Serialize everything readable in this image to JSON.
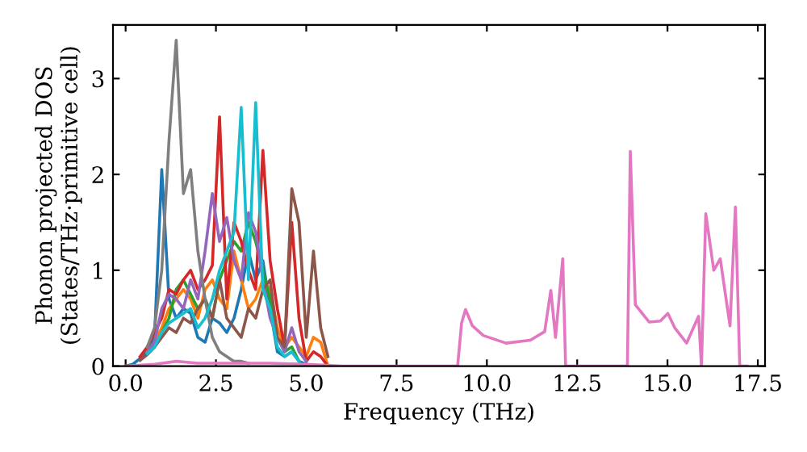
{
  "chart_data": {
    "type": "line",
    "xlabel": "Frequency (THz)",
    "ylabel": "Phonon projected DOS\n(States/THz·primitive cell)",
    "xlim": [
      -0.35,
      17.7
    ],
    "ylim": [
      0,
      3.56
    ],
    "xticks": [
      {
        "value": 0,
        "label": "0.0"
      },
      {
        "value": 2.5,
        "label": "2.5"
      },
      {
        "value": 5,
        "label": "5.0"
      },
      {
        "value": 7.5,
        "label": "7.5"
      },
      {
        "value": 10,
        "label": "10.0"
      },
      {
        "value": 12.5,
        "label": "12.5"
      },
      {
        "value": 15,
        "label": "15.0"
      },
      {
        "value": 17.5,
        "label": "17.5"
      }
    ],
    "yticks": [
      0,
      1,
      2,
      3
    ],
    "grid": false,
    "x": [
      0,
      0.2,
      0.4,
      0.6,
      0.8,
      1.0,
      1.2,
      1.4,
      1.6,
      1.8,
      2.0,
      2.2,
      2.4,
      2.6,
      2.8,
      3.0,
      3.2,
      3.4,
      3.6,
      3.8,
      4.0,
      4.2,
      4.4,
      4.6,
      4.8,
      5.0,
      5.2,
      5.4,
      5.6
    ],
    "series": [
      {
        "color": "#1f77b4",
        "values": [
          0,
          0.02,
          0.08,
          0.15,
          0.3,
          2.05,
          0.7,
          0.5,
          0.6,
          0.55,
          0.3,
          0.25,
          0.5,
          0.45,
          0.35,
          0.5,
          0.8,
          1.2,
          0.9,
          1.1,
          0.6,
          0.15,
          0.1,
          0.15,
          0.05,
          0.02,
          null,
          null,
          null
        ]
      },
      {
        "color": "#ff7f0e",
        "values": [
          null,
          null,
          null,
          0.15,
          0.25,
          0.4,
          0.6,
          0.7,
          0.8,
          0.7,
          0.5,
          0.8,
          0.9,
          0.7,
          0.6,
          1.2,
          0.9,
          0.6,
          0.7,
          0.9,
          0.8,
          0.4,
          0.2,
          0.3,
          0.2,
          0.1,
          0.3,
          0.25,
          0
        ]
      },
      {
        "color": "#2ca02c",
        "values": [
          null,
          null,
          null,
          0.13,
          0.2,
          0.35,
          0.5,
          0.8,
          0.9,
          0.75,
          0.6,
          0.7,
          0.5,
          0.9,
          1.1,
          1.3,
          1.2,
          1.5,
          1.3,
          1.0,
          0.7,
          0.3,
          0.15,
          0.2,
          0.05,
          null,
          null,
          null,
          null
        ]
      },
      {
        "color": "#d62728",
        "values": [
          null,
          null,
          0.1,
          0.2,
          0.35,
          0.5,
          0.8,
          0.75,
          0.9,
          1.0,
          0.8,
          0.9,
          1.05,
          2.6,
          0.7,
          1.5,
          1.3,
          1.0,
          0.8,
          2.25,
          1.1,
          0.6,
          0.2,
          1.5,
          0.5,
          0.05,
          0.15,
          0.1,
          0
        ]
      },
      {
        "color": "#9467bd",
        "values": [
          null,
          null,
          null,
          0.15,
          0.25,
          0.6,
          0.75,
          0.7,
          0.6,
          0.9,
          0.7,
          1.2,
          1.8,
          1.3,
          1.55,
          1.1,
          0.9,
          1.6,
          1.4,
          0.9,
          0.5,
          0.3,
          0.15,
          0.4,
          0.15,
          0.05,
          null,
          null,
          null
        ]
      },
      {
        "color": "#8c564b",
        "values": [
          null,
          null,
          0.06,
          0.12,
          0.2,
          0.3,
          0.4,
          0.35,
          0.5,
          0.45,
          0.6,
          0.7,
          0.5,
          0.9,
          0.5,
          0.4,
          0.3,
          0.6,
          0.5,
          0.8,
          0.9,
          0.3,
          0.2,
          1.85,
          1.5,
          0.3,
          1.2,
          0.4,
          0.1
        ]
      },
      {
        "color": "#7f7f7f",
        "values": [
          null,
          null,
          null,
          0.2,
          0.4,
          1.0,
          2.35,
          3.4,
          1.8,
          2.05,
          1.2,
          0.7,
          0.3,
          0.15,
          0.1,
          0.05,
          0.05,
          0.03,
          null,
          null,
          null,
          null,
          null,
          null,
          null,
          null,
          null,
          null,
          null
        ]
      },
      {
        "color": "#17becf",
        "values": [
          null,
          null,
          null,
          0.13,
          0.2,
          0.35,
          0.45,
          0.5,
          0.55,
          0.6,
          0.4,
          0.5,
          0.7,
          1.0,
          1.2,
          1.4,
          2.7,
          0.9,
          2.75,
          0.8,
          0.6,
          0.2,
          0.1,
          0.15,
          0.05,
          null,
          null,
          null,
          null
        ]
      },
      {
        "color": "#e377c2",
        "x": [
          0,
          0.8,
          1.4,
          2.0,
          3.0,
          4.0,
          5.0,
          6.0,
          9.0,
          9.19,
          9.3,
          9.41,
          9.6,
          9.9,
          10.53,
          11.2,
          11.6,
          11.77,
          11.9,
          12.1,
          12.18,
          13.0,
          13.89,
          13.97,
          14.11,
          14.49,
          14.8,
          15.01,
          15.2,
          15.53,
          15.86,
          15.94,
          16.06,
          16.28,
          16.46,
          16.73,
          16.88,
          17.0,
          17.2
        ],
        "values": [
          0,
          0.02,
          0.05,
          0.03,
          0.03,
          0.03,
          0.02,
          0,
          0,
          0,
          0.45,
          0.59,
          0.42,
          0.32,
          0.24,
          0.27,
          0.36,
          0.79,
          0.3,
          1.12,
          0,
          0,
          0,
          2.24,
          0.64,
          0.46,
          0.47,
          0.55,
          0.4,
          0.24,
          0.52,
          0,
          1.59,
          1.0,
          1.12,
          0.42,
          1.66,
          0,
          0
        ]
      }
    ]
  }
}
